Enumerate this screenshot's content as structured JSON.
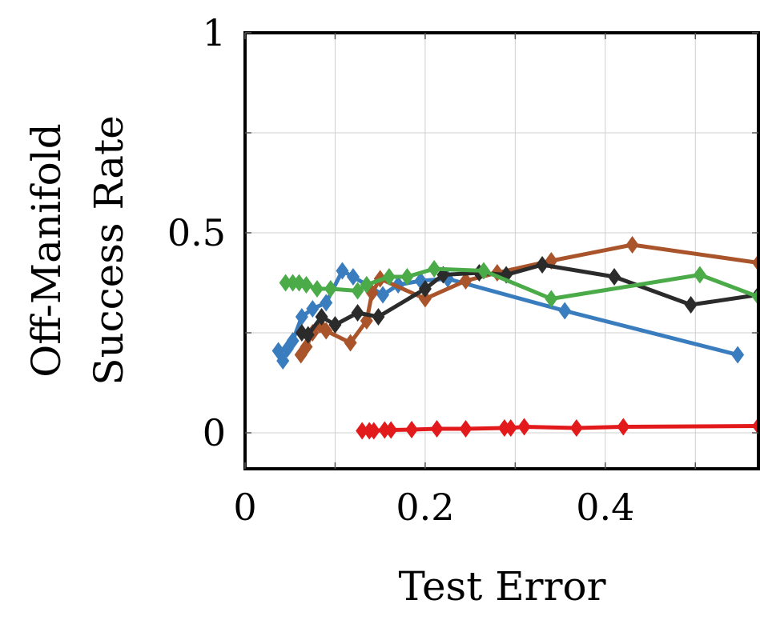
{
  "chart_data": {
    "type": "line",
    "title": "",
    "xlabel": "Test Error",
    "ylabel_lines": [
      "Off-Manifold",
      "Success Rate"
    ],
    "xlim": [
      0,
      0.57
    ],
    "ylim": [
      -0.09,
      1
    ],
    "xticks": [
      {
        "value": 0,
        "label": "0"
      },
      {
        "value": 0.2,
        "label": "0.2"
      },
      {
        "value": 0.4,
        "label": "0.4"
      }
    ],
    "yticks": [
      {
        "value": 0,
        "label": "0"
      },
      {
        "value": 0.5,
        "label": "0.5"
      },
      {
        "value": 1,
        "label": "1"
      }
    ],
    "xgrid": [
      0.1,
      0.2,
      0.3,
      0.4,
      0.5
    ],
    "ygrid": [
      0,
      0.25,
      0.5,
      0.75
    ],
    "grid": true,
    "marker": "diamond",
    "series": [
      {
        "color": "#3a7dbf",
        "points": [
          [
            0.037,
            0.205
          ],
          [
            0.042,
            0.18
          ],
          [
            0.047,
            0.21
          ],
          [
            0.053,
            0.23
          ],
          [
            0.063,
            0.29
          ],
          [
            0.075,
            0.31
          ],
          [
            0.09,
            0.325
          ],
          [
            0.108,
            0.405
          ],
          [
            0.12,
            0.39
          ],
          [
            0.135,
            0.37
          ],
          [
            0.153,
            0.345
          ],
          [
            0.17,
            0.37
          ],
          [
            0.195,
            0.38
          ],
          [
            0.225,
            0.385
          ],
          [
            0.355,
            0.305
          ],
          [
            0.547,
            0.195
          ]
        ]
      },
      {
        "color": "#a9542a",
        "points": [
          [
            0.062,
            0.195
          ],
          [
            0.068,
            0.215
          ],
          [
            0.075,
            0.25
          ],
          [
            0.083,
            0.27
          ],
          [
            0.09,
            0.255
          ],
          [
            0.117,
            0.225
          ],
          [
            0.135,
            0.28
          ],
          [
            0.141,
            0.35
          ],
          [
            0.15,
            0.385
          ],
          [
            0.2,
            0.335
          ],
          [
            0.245,
            0.38
          ],
          [
            0.28,
            0.4
          ],
          [
            0.34,
            0.43
          ],
          [
            0.43,
            0.47
          ],
          [
            0.57,
            0.425
          ]
        ]
      },
      {
        "color": "#2b2b2b",
        "points": [
          [
            0.063,
            0.25
          ],
          [
            0.07,
            0.245
          ],
          [
            0.085,
            0.29
          ],
          [
            0.1,
            0.27
          ],
          [
            0.125,
            0.3
          ],
          [
            0.148,
            0.29
          ],
          [
            0.2,
            0.36
          ],
          [
            0.22,
            0.395
          ],
          [
            0.26,
            0.4
          ],
          [
            0.29,
            0.395
          ],
          [
            0.33,
            0.42
          ],
          [
            0.41,
            0.39
          ],
          [
            0.495,
            0.32
          ],
          [
            0.57,
            0.345
          ]
        ]
      },
      {
        "color": "#4aab48",
        "points": [
          [
            0.045,
            0.375
          ],
          [
            0.053,
            0.375
          ],
          [
            0.06,
            0.375
          ],
          [
            0.068,
            0.37
          ],
          [
            0.08,
            0.36
          ],
          [
            0.095,
            0.36
          ],
          [
            0.125,
            0.355
          ],
          [
            0.135,
            0.37
          ],
          [
            0.16,
            0.39
          ],
          [
            0.18,
            0.39
          ],
          [
            0.21,
            0.41
          ],
          [
            0.265,
            0.405
          ],
          [
            0.34,
            0.335
          ],
          [
            0.505,
            0.395
          ],
          [
            0.57,
            0.34
          ]
        ]
      },
      {
        "color": "#e31a1c",
        "points": [
          [
            0.13,
            0.005
          ],
          [
            0.138,
            0.005
          ],
          [
            0.143,
            0.005
          ],
          [
            0.155,
            0.007
          ],
          [
            0.162,
            0.007
          ],
          [
            0.185,
            0.008
          ],
          [
            0.213,
            0.01
          ],
          [
            0.245,
            0.01
          ],
          [
            0.288,
            0.012
          ],
          [
            0.295,
            0.012
          ],
          [
            0.31,
            0.015
          ],
          [
            0.368,
            0.012
          ],
          [
            0.42,
            0.015
          ],
          [
            0.57,
            0.017
          ]
        ]
      }
    ]
  }
}
